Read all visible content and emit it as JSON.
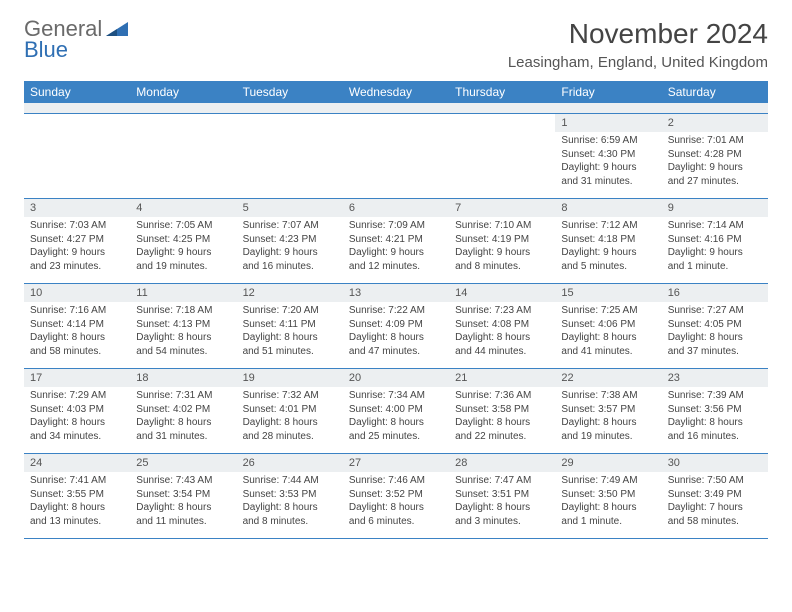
{
  "logo": {
    "line1": "General",
    "line2": "Blue",
    "text_color": "#6a6a6a",
    "accent_color": "#2f6fb3"
  },
  "title": "November 2024",
  "location": "Leasingham, England, United Kingdom",
  "header_bg": "#3b82c4",
  "header_fg": "#ffffff",
  "daynum_bg": "#eceff1",
  "border_color": "#3b82c4",
  "day_headers": [
    "Sunday",
    "Monday",
    "Tuesday",
    "Wednesday",
    "Thursday",
    "Friday",
    "Saturday"
  ],
  "weeks": [
    [
      {
        "empty": true
      },
      {
        "empty": true
      },
      {
        "empty": true
      },
      {
        "empty": true
      },
      {
        "empty": true
      },
      {
        "n": "1",
        "sunrise": "Sunrise: 6:59 AM",
        "sunset": "Sunset: 4:30 PM",
        "day1": "Daylight: 9 hours",
        "day2": "and 31 minutes."
      },
      {
        "n": "2",
        "sunrise": "Sunrise: 7:01 AM",
        "sunset": "Sunset: 4:28 PM",
        "day1": "Daylight: 9 hours",
        "day2": "and 27 minutes."
      }
    ],
    [
      {
        "n": "3",
        "sunrise": "Sunrise: 7:03 AM",
        "sunset": "Sunset: 4:27 PM",
        "day1": "Daylight: 9 hours",
        "day2": "and 23 minutes."
      },
      {
        "n": "4",
        "sunrise": "Sunrise: 7:05 AM",
        "sunset": "Sunset: 4:25 PM",
        "day1": "Daylight: 9 hours",
        "day2": "and 19 minutes."
      },
      {
        "n": "5",
        "sunrise": "Sunrise: 7:07 AM",
        "sunset": "Sunset: 4:23 PM",
        "day1": "Daylight: 9 hours",
        "day2": "and 16 minutes."
      },
      {
        "n": "6",
        "sunrise": "Sunrise: 7:09 AM",
        "sunset": "Sunset: 4:21 PM",
        "day1": "Daylight: 9 hours",
        "day2": "and 12 minutes."
      },
      {
        "n": "7",
        "sunrise": "Sunrise: 7:10 AM",
        "sunset": "Sunset: 4:19 PM",
        "day1": "Daylight: 9 hours",
        "day2": "and 8 minutes."
      },
      {
        "n": "8",
        "sunrise": "Sunrise: 7:12 AM",
        "sunset": "Sunset: 4:18 PM",
        "day1": "Daylight: 9 hours",
        "day2": "and 5 minutes."
      },
      {
        "n": "9",
        "sunrise": "Sunrise: 7:14 AM",
        "sunset": "Sunset: 4:16 PM",
        "day1": "Daylight: 9 hours",
        "day2": "and 1 minute."
      }
    ],
    [
      {
        "n": "10",
        "sunrise": "Sunrise: 7:16 AM",
        "sunset": "Sunset: 4:14 PM",
        "day1": "Daylight: 8 hours",
        "day2": "and 58 minutes."
      },
      {
        "n": "11",
        "sunrise": "Sunrise: 7:18 AM",
        "sunset": "Sunset: 4:13 PM",
        "day1": "Daylight: 8 hours",
        "day2": "and 54 minutes."
      },
      {
        "n": "12",
        "sunrise": "Sunrise: 7:20 AM",
        "sunset": "Sunset: 4:11 PM",
        "day1": "Daylight: 8 hours",
        "day2": "and 51 minutes."
      },
      {
        "n": "13",
        "sunrise": "Sunrise: 7:22 AM",
        "sunset": "Sunset: 4:09 PM",
        "day1": "Daylight: 8 hours",
        "day2": "and 47 minutes."
      },
      {
        "n": "14",
        "sunrise": "Sunrise: 7:23 AM",
        "sunset": "Sunset: 4:08 PM",
        "day1": "Daylight: 8 hours",
        "day2": "and 44 minutes."
      },
      {
        "n": "15",
        "sunrise": "Sunrise: 7:25 AM",
        "sunset": "Sunset: 4:06 PM",
        "day1": "Daylight: 8 hours",
        "day2": "and 41 minutes."
      },
      {
        "n": "16",
        "sunrise": "Sunrise: 7:27 AM",
        "sunset": "Sunset: 4:05 PM",
        "day1": "Daylight: 8 hours",
        "day2": "and 37 minutes."
      }
    ],
    [
      {
        "n": "17",
        "sunrise": "Sunrise: 7:29 AM",
        "sunset": "Sunset: 4:03 PM",
        "day1": "Daylight: 8 hours",
        "day2": "and 34 minutes."
      },
      {
        "n": "18",
        "sunrise": "Sunrise: 7:31 AM",
        "sunset": "Sunset: 4:02 PM",
        "day1": "Daylight: 8 hours",
        "day2": "and 31 minutes."
      },
      {
        "n": "19",
        "sunrise": "Sunrise: 7:32 AM",
        "sunset": "Sunset: 4:01 PM",
        "day1": "Daylight: 8 hours",
        "day2": "and 28 minutes."
      },
      {
        "n": "20",
        "sunrise": "Sunrise: 7:34 AM",
        "sunset": "Sunset: 4:00 PM",
        "day1": "Daylight: 8 hours",
        "day2": "and 25 minutes."
      },
      {
        "n": "21",
        "sunrise": "Sunrise: 7:36 AM",
        "sunset": "Sunset: 3:58 PM",
        "day1": "Daylight: 8 hours",
        "day2": "and 22 minutes."
      },
      {
        "n": "22",
        "sunrise": "Sunrise: 7:38 AM",
        "sunset": "Sunset: 3:57 PM",
        "day1": "Daylight: 8 hours",
        "day2": "and 19 minutes."
      },
      {
        "n": "23",
        "sunrise": "Sunrise: 7:39 AM",
        "sunset": "Sunset: 3:56 PM",
        "day1": "Daylight: 8 hours",
        "day2": "and 16 minutes."
      }
    ],
    [
      {
        "n": "24",
        "sunrise": "Sunrise: 7:41 AM",
        "sunset": "Sunset: 3:55 PM",
        "day1": "Daylight: 8 hours",
        "day2": "and 13 minutes."
      },
      {
        "n": "25",
        "sunrise": "Sunrise: 7:43 AM",
        "sunset": "Sunset: 3:54 PM",
        "day1": "Daylight: 8 hours",
        "day2": "and 11 minutes."
      },
      {
        "n": "26",
        "sunrise": "Sunrise: 7:44 AM",
        "sunset": "Sunset: 3:53 PM",
        "day1": "Daylight: 8 hours",
        "day2": "and 8 minutes."
      },
      {
        "n": "27",
        "sunrise": "Sunrise: 7:46 AM",
        "sunset": "Sunset: 3:52 PM",
        "day1": "Daylight: 8 hours",
        "day2": "and 6 minutes."
      },
      {
        "n": "28",
        "sunrise": "Sunrise: 7:47 AM",
        "sunset": "Sunset: 3:51 PM",
        "day1": "Daylight: 8 hours",
        "day2": "and 3 minutes."
      },
      {
        "n": "29",
        "sunrise": "Sunrise: 7:49 AM",
        "sunset": "Sunset: 3:50 PM",
        "day1": "Daylight: 8 hours",
        "day2": "and 1 minute."
      },
      {
        "n": "30",
        "sunrise": "Sunrise: 7:50 AM",
        "sunset": "Sunset: 3:49 PM",
        "day1": "Daylight: 7 hours",
        "day2": "and 58 minutes."
      }
    ]
  ]
}
